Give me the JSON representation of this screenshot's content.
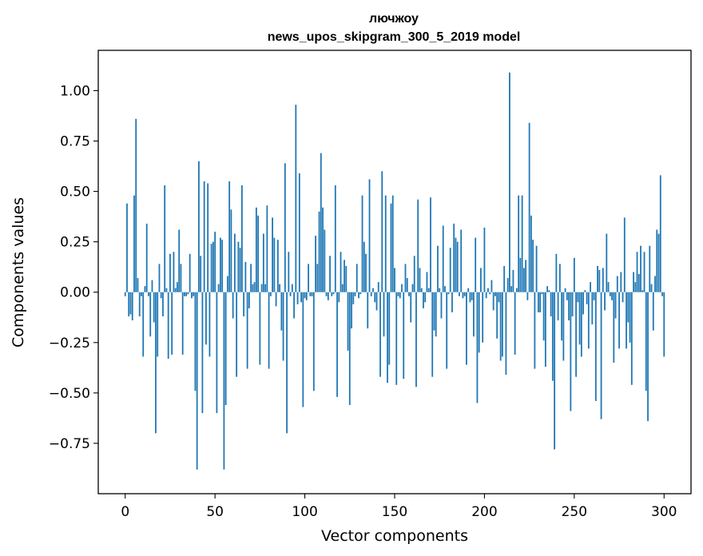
{
  "chart_data": {
    "type": "bar",
    "title_line1": "лючжоу",
    "title_line2": "news_upos_skipgram_300_5_2019 model",
    "xlabel": "Vector components",
    "ylabel": "Components values",
    "xlim": [
      -15,
      315
    ],
    "ylim": [
      -1.0,
      1.2
    ],
    "x_ticks": [
      0,
      50,
      100,
      150,
      200,
      250,
      300
    ],
    "y_ticks": [
      -0.75,
      -0.5,
      -0.25,
      0.0,
      0.25,
      0.5,
      0.75,
      1.0
    ],
    "x_tick_labels": [
      "0",
      "50",
      "100",
      "150",
      "200",
      "250",
      "300"
    ],
    "y_tick_labels": [
      "−0.75",
      "−0.50",
      "−0.25",
      "0.00",
      "0.25",
      "0.50",
      "0.75",
      "1.00"
    ],
    "bar_color": "#1f77b4",
    "values": [
      -0.02,
      0.44,
      -0.12,
      -0.11,
      -0.14,
      0.48,
      0.86,
      0.07,
      -0.12,
      -0.02,
      -0.32,
      0.03,
      0.34,
      -0.02,
      -0.22,
      0.06,
      -0.15,
      -0.7,
      -0.32,
      0.14,
      -0.03,
      -0.12,
      0.53,
      0.02,
      -0.33,
      0.19,
      -0.31,
      0.2,
      0.02,
      0.05,
      0.31,
      0.14,
      -0.31,
      -0.02,
      -0.02,
      -0.01,
      0.19,
      -0.03,
      -0.02,
      -0.49,
      -0.88,
      0.65,
      0.18,
      -0.6,
      0.55,
      -0.26,
      0.54,
      -0.32,
      0.24,
      0.25,
      0.3,
      -0.6,
      0.04,
      0.27,
      0.26,
      -0.88,
      -0.56,
      0.08,
      0.55,
      0.41,
      -0.13,
      0.29,
      -0.42,
      0.25,
      0.22,
      0.53,
      -0.12,
      0.15,
      -0.38,
      -0.08,
      0.14,
      0.04,
      0.05,
      0.42,
      0.38,
      -0.36,
      0.04,
      0.29,
      0.04,
      0.43,
      -0.38,
      -0.02,
      0.37,
      0.27,
      -0.07,
      0.26,
      0.04,
      -0.19,
      -0.34,
      0.64,
      -0.7,
      0.2,
      -0.02,
      0.04,
      -0.13,
      0.93,
      -0.06,
      0.59,
      -0.05,
      -0.57,
      -0.03,
      -0.04,
      0.14,
      -0.02,
      -0.02,
      -0.49,
      0.28,
      0.14,
      0.4,
      0.69,
      0.42,
      0.31,
      -0.02,
      -0.04,
      0.18,
      -0.02,
      -0.01,
      0.53,
      -0.52,
      -0.05,
      0.2,
      0.04,
      0.16,
      0.13,
      -0.29,
      -0.56,
      -0.18,
      -0.06,
      -0.02,
      0.14,
      -0.03,
      -0.01,
      0.48,
      0.25,
      0.19,
      -0.18,
      0.56,
      -0.02,
      0.02,
      -0.05,
      -0.09,
      0.05,
      -0.42,
      0.6,
      -0.22,
      0.48,
      -0.45,
      -0.36,
      0.44,
      0.48,
      0.12,
      -0.46,
      -0.02,
      -0.03,
      0.04,
      -0.43,
      0.14,
      0.07,
      -0.02,
      -0.15,
      0.04,
      0.18,
      -0.47,
      0.46,
      0.12,
      0.02,
      -0.08,
      -0.05,
      0.1,
      0.02,
      0.47,
      -0.42,
      -0.19,
      -0.22,
      0.23,
      0.02,
      -0.13,
      0.33,
      0.03,
      -0.38,
      -0.01,
      0.22,
      -0.1,
      0.34,
      0.27,
      0.25,
      -0.02,
      0.31,
      -0.03,
      -0.02,
      -0.36,
      0.02,
      -0.05,
      -0.04,
      -0.22,
      0.27,
      -0.55,
      -0.3,
      0.12,
      -0.25,
      0.32,
      -0.03,
      0.02,
      -0.01,
      0.06,
      -0.09,
      -0.02,
      -0.23,
      -0.05,
      -0.34,
      -0.32,
      0.13,
      -0.41,
      0.07,
      1.09,
      0.03,
      0.11,
      -0.31,
      0.02,
      0.48,
      0.17,
      0.48,
      0.12,
      0.16,
      -0.04,
      0.84,
      0.38,
      0.26,
      -0.38,
      0.23,
      -0.1,
      -0.1,
      -0.01,
      -0.24,
      -0.37,
      0.03,
      0.01,
      -0.12,
      -0.44,
      -0.78,
      0.19,
      -0.14,
      0.14,
      -0.24,
      -0.34,
      0.02,
      -0.04,
      -0.14,
      -0.59,
      -0.12,
      0.17,
      -0.42,
      -0.05,
      -0.26,
      -0.32,
      -0.11,
      0.01,
      -0.06,
      -0.28,
      0.05,
      -0.16,
      -0.04,
      -0.54,
      0.13,
      0.11,
      -0.63,
      0.12,
      -0.09,
      0.29,
      0.05,
      -0.02,
      -0.04,
      -0.35,
      -0.13,
      0.08,
      -0.28,
      0.1,
      -0.05,
      0.37,
      -0.28,
      -0.15,
      -0.25,
      -0.46,
      0.1,
      0.05,
      0.2,
      0.09,
      0.23,
      0.01,
      0.2,
      -0.49,
      -0.64,
      0.23,
      0.04,
      -0.19,
      0.08,
      0.31,
      0.29,
      0.58,
      -0.02,
      -0.32
    ]
  }
}
